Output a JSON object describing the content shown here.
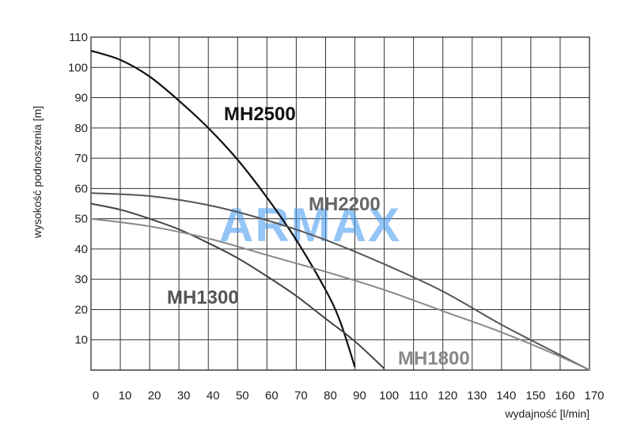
{
  "chart_data": {
    "type": "line",
    "xlabel": "wydajność [l/min]",
    "ylabel": "wysokość podnoszenia [m]",
    "xlim": [
      0,
      170
    ],
    "ylim": [
      0,
      110
    ],
    "x_ticks": [
      0,
      10,
      20,
      30,
      40,
      50,
      60,
      70,
      80,
      90,
      100,
      110,
      120,
      130,
      140,
      150,
      160,
      170
    ],
    "y_ticks": [
      10,
      20,
      30,
      40,
      50,
      60,
      70,
      80,
      90,
      100,
      110
    ],
    "grid": true,
    "watermark": "ARMAX",
    "series": [
      {
        "name": "MH2500",
        "color": "#111111",
        "points": [
          [
            0,
            105.5
          ],
          [
            10,
            102.5
          ],
          [
            20,
            97
          ],
          [
            30,
            89
          ],
          [
            40,
            80
          ],
          [
            50,
            69.5
          ],
          [
            60,
            57
          ],
          [
            70,
            43
          ],
          [
            80,
            26.5
          ],
          [
            85,
            16
          ],
          [
            90,
            1
          ]
        ]
      },
      {
        "name": "MH2200",
        "color": "#555555",
        "points": [
          [
            0,
            58.5
          ],
          [
            20,
            57.5
          ],
          [
            40,
            54.5
          ],
          [
            60,
            49.5
          ],
          [
            80,
            43
          ],
          [
            100,
            35
          ],
          [
            120,
            26
          ],
          [
            140,
            15
          ],
          [
            160,
            5
          ],
          [
            170,
            0
          ]
        ]
      },
      {
        "name": "MH1300",
        "color": "#444444",
        "points": [
          [
            0,
            55
          ],
          [
            10,
            53
          ],
          [
            20,
            50
          ],
          [
            30,
            46.5
          ],
          [
            40,
            42
          ],
          [
            50,
            37
          ],
          [
            60,
            31
          ],
          [
            70,
            24.5
          ],
          [
            80,
            17
          ],
          [
            90,
            9.5
          ],
          [
            100,
            0.5
          ]
        ]
      },
      {
        "name": "MH1800",
        "color": "#888888",
        "points": [
          [
            0,
            50
          ],
          [
            20,
            47.5
          ],
          [
            40,
            43.5
          ],
          [
            60,
            38
          ],
          [
            80,
            32.5
          ],
          [
            100,
            26.5
          ],
          [
            120,
            19.5
          ],
          [
            140,
            12.5
          ],
          [
            160,
            4.5
          ],
          [
            170,
            0
          ]
        ]
      }
    ]
  }
}
